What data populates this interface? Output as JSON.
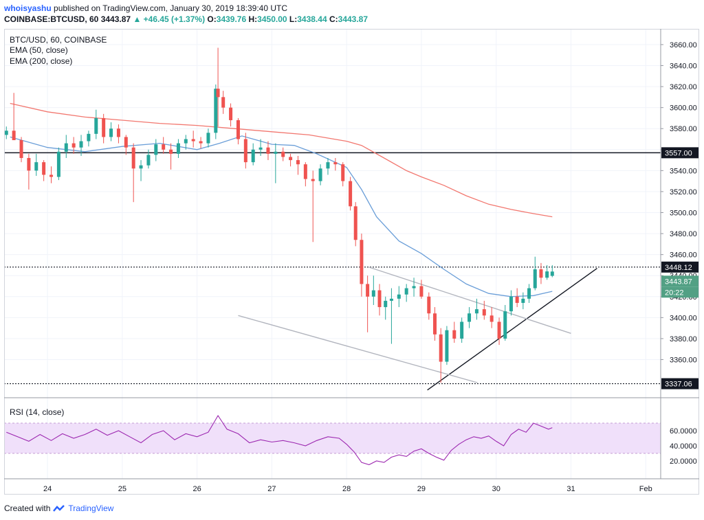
{
  "header": {
    "author": "whoisyashu",
    "published": "published on TradingView.com, January 30, 2019 18:39:40 UTC",
    "symbol": "COINBASE:BTCUSD, 60",
    "last": "3443.87",
    "arrow": "▲",
    "change": "+46.45 (+1.37%)",
    "o_label": "O:",
    "o_value": "3439.76",
    "h_label": "H:",
    "h_value": "3450.00",
    "l_label": "L:",
    "l_value": "3438.44",
    "c_label": "C:",
    "c_value": "3443.87"
  },
  "legend": {
    "line1": "BTC/USD, 60, COINBASE",
    "line2": "EMA (50, close)",
    "line3": "EMA (200, close)",
    "rsi": "RSI (14, close)"
  },
  "price_labels": {
    "resistance": "3557.00",
    "dotted_high": "3448.12",
    "last_price": "3443.87",
    "countdown": "20:22",
    "dotted_low": "3337.06"
  },
  "footer": {
    "prefix": "Created with",
    "brand": "TradingView"
  },
  "colors": {
    "up": "#26a69a",
    "down": "#ef5350",
    "ema50": "#6a9ed8",
    "ema200": "#f2776f",
    "rsi": "#9c27b0",
    "rsi_band": "#f0e0fa",
    "last_label": "#52a084"
  },
  "chart_data": {
    "type": "candlestick",
    "price_axis": {
      "ticks": [
        3360,
        3380,
        3400,
        3420,
        3440,
        3460,
        3480,
        3500,
        3520,
        3540,
        3560,
        3580,
        3600,
        3620,
        3640,
        3660
      ],
      "range": [
        3325,
        3675
      ]
    },
    "time_axis": {
      "labels": [
        "24",
        "25",
        "26",
        "27",
        "28",
        "29",
        "30",
        "31",
        "Feb"
      ]
    },
    "horizontal_levels": [
      {
        "value": 3557.0,
        "style": "solid"
      },
      {
        "value": 3448.12,
        "style": "dotted"
      },
      {
        "value": 3337.06,
        "style": "dotted"
      }
    ],
    "trendlines": [
      {
        "from": [
          29.08,
          3331
        ],
        "to": [
          31.35,
          3447
        ],
        "color": "#131722"
      },
      {
        "from": [
          28.3,
          3448
        ],
        "to": [
          31.0,
          3385
        ],
        "color": "#b2b5be"
      },
      {
        "from": [
          26.55,
          3402
        ],
        "to": [
          29.75,
          3338
        ],
        "color": "#b2b5be"
      }
    ],
    "ema50": [
      [
        23.5,
        3572
      ],
      [
        24.0,
        3562
      ],
      [
        24.5,
        3558
      ],
      [
        25.0,
        3563
      ],
      [
        25.5,
        3566
      ],
      [
        26.0,
        3560
      ],
      [
        26.3,
        3566
      ],
      [
        26.6,
        3573
      ],
      [
        27.0,
        3565
      ],
      [
        27.3,
        3564
      ],
      [
        27.6,
        3556
      ],
      [
        28.0,
        3543
      ],
      [
        28.2,
        3522
      ],
      [
        28.4,
        3496
      ],
      [
        28.7,
        3473
      ],
      [
        29.0,
        3461
      ],
      [
        29.3,
        3446
      ],
      [
        29.6,
        3432
      ],
      [
        29.9,
        3423
      ],
      [
        30.2,
        3420
      ],
      [
        30.5,
        3421
      ],
      [
        30.75,
        3425
      ]
    ],
    "ema200": [
      [
        23.5,
        3604
      ],
      [
        24.0,
        3596
      ],
      [
        24.5,
        3591
      ],
      [
        25.0,
        3588
      ],
      [
        25.5,
        3585
      ],
      [
        26.0,
        3583
      ],
      [
        26.5,
        3580
      ],
      [
        27.0,
        3577
      ],
      [
        27.5,
        3574
      ],
      [
        28.0,
        3568
      ],
      [
        28.2,
        3564
      ],
      [
        28.5,
        3552
      ],
      [
        28.8,
        3540
      ],
      [
        29.0,
        3534
      ],
      [
        29.3,
        3526
      ],
      [
        29.6,
        3516
      ],
      [
        29.9,
        3508
      ],
      [
        30.2,
        3503
      ],
      [
        30.5,
        3499
      ],
      [
        30.75,
        3496
      ]
    ],
    "candles": [
      [
        23.45,
        3574,
        3582,
        3570,
        3578
      ],
      [
        23.55,
        3578,
        3614,
        3570,
        3569
      ],
      [
        23.65,
        3569,
        3572,
        3548,
        3552
      ],
      [
        23.75,
        3552,
        3556,
        3522,
        3540
      ],
      [
        23.85,
        3540,
        3556,
        3535,
        3548
      ],
      [
        23.95,
        3548,
        3550,
        3530,
        3536
      ],
      [
        24.05,
        3536,
        3544,
        3528,
        3534
      ],
      [
        24.15,
        3534,
        3562,
        3531,
        3558
      ],
      [
        24.25,
        3558,
        3574,
        3552,
        3566
      ],
      [
        24.35,
        3566,
        3572,
        3556,
        3562
      ],
      [
        24.45,
        3562,
        3574,
        3554,
        3568
      ],
      [
        24.55,
        3568,
        3578,
        3563,
        3575
      ],
      [
        24.65,
        3575,
        3598,
        3570,
        3590
      ],
      [
        24.75,
        3590,
        3594,
        3566,
        3572
      ],
      [
        24.85,
        3572,
        3586,
        3568,
        3580
      ],
      [
        24.95,
        3580,
        3584,
        3566,
        3572
      ],
      [
        25.05,
        3572,
        3574,
        3555,
        3562
      ],
      [
        25.15,
        3562,
        3566,
        3510,
        3542
      ],
      [
        25.25,
        3542,
        3550,
        3530,
        3545
      ],
      [
        25.35,
        3545,
        3560,
        3542,
        3555
      ],
      [
        25.45,
        3555,
        3570,
        3549,
        3565
      ],
      [
        25.55,
        3565,
        3572,
        3556,
        3560
      ],
      [
        25.65,
        3560,
        3566,
        3541,
        3556
      ],
      [
        25.75,
        3556,
        3570,
        3552,
        3566
      ],
      [
        25.85,
        3566,
        3574,
        3560,
        3570
      ],
      [
        25.95,
        3570,
        3578,
        3562,
        3568
      ],
      [
        26.05,
        3568,
        3572,
        3561,
        3566
      ],
      [
        26.15,
        3566,
        3580,
        3562,
        3576
      ],
      [
        26.25,
        3576,
        3622,
        3570,
        3618
      ],
      [
        26.28,
        3618,
        3657,
        3582,
        3610
      ],
      [
        26.35,
        3610,
        3616,
        3594,
        3600
      ],
      [
        26.45,
        3600,
        3604,
        3582,
        3588
      ],
      [
        26.55,
        3588,
        3590,
        3565,
        3570
      ],
      [
        26.65,
        3570,
        3576,
        3542,
        3548
      ],
      [
        26.75,
        3548,
        3566,
        3545,
        3560
      ],
      [
        26.85,
        3560,
        3570,
        3554,
        3562
      ],
      [
        26.95,
        3562,
        3568,
        3550,
        3556
      ],
      [
        27.05,
        3556,
        3566,
        3528,
        3558
      ],
      [
        27.15,
        3558,
        3562,
        3549,
        3553
      ],
      [
        27.25,
        3553,
        3556,
        3544,
        3550
      ],
      [
        27.35,
        3550,
        3554,
        3536,
        3546
      ],
      [
        27.45,
        3546,
        3548,
        3525,
        3532
      ],
      [
        27.55,
        3532,
        3540,
        3472,
        3530
      ],
      [
        27.65,
        3530,
        3546,
        3526,
        3542
      ],
      [
        27.75,
        3542,
        3552,
        3536,
        3548
      ],
      [
        27.85,
        3548,
        3552,
        3540,
        3546
      ],
      [
        27.95,
        3546,
        3548,
        3525,
        3530
      ],
      [
        28.05,
        3530,
        3534,
        3502,
        3506
      ],
      [
        28.12,
        3506,
        3510,
        3468,
        3474
      ],
      [
        28.2,
        3474,
        3480,
        3420,
        3432
      ],
      [
        28.28,
        3432,
        3440,
        3386,
        3420
      ],
      [
        28.36,
        3420,
        3440,
        3412,
        3426
      ],
      [
        28.44,
        3426,
        3432,
        3402,
        3410
      ],
      [
        28.52,
        3410,
        3420,
        3398,
        3416
      ],
      [
        28.6,
        3416,
        3428,
        3375,
        3418
      ],
      [
        28.7,
        3418,
        3430,
        3410,
        3422
      ],
      [
        28.8,
        3422,
        3432,
        3415,
        3428
      ],
      [
        28.9,
        3428,
        3438,
        3420,
        3430
      ],
      [
        29.0,
        3430,
        3436,
        3418,
        3420
      ],
      [
        29.1,
        3420,
        3424,
        3398,
        3404
      ],
      [
        29.18,
        3404,
        3410,
        3378,
        3384
      ],
      [
        29.26,
        3384,
        3390,
        3338,
        3358
      ],
      [
        29.34,
        3358,
        3392,
        3355,
        3388
      ],
      [
        29.44,
        3388,
        3396,
        3376,
        3380
      ],
      [
        29.54,
        3380,
        3400,
        3376,
        3396
      ],
      [
        29.64,
        3396,
        3410,
        3390,
        3404
      ],
      [
        29.74,
        3404,
        3418,
        3398,
        3408
      ],
      [
        29.84,
        3408,
        3416,
        3398,
        3402
      ],
      [
        29.94,
        3402,
        3410,
        3390,
        3396
      ],
      [
        30.04,
        3396,
        3400,
        3374,
        3380
      ],
      [
        30.12,
        3380,
        3412,
        3378,
        3406
      ],
      [
        30.2,
        3406,
        3426,
        3402,
        3420
      ],
      [
        30.28,
        3420,
        3428,
        3410,
        3414
      ],
      [
        30.36,
        3414,
        3424,
        3408,
        3418
      ],
      [
        30.44,
        3418,
        3432,
        3414,
        3428
      ],
      [
        30.52,
        3428,
        3458,
        3426,
        3446
      ],
      [
        30.6,
        3446,
        3452,
        3432,
        3438
      ],
      [
        30.68,
        3438,
        3450,
        3436,
        3444
      ],
      [
        30.75,
        3439.76,
        3450.0,
        3438.44,
        3443.87
      ]
    ],
    "rsi": {
      "axis_ticks": [
        20,
        40,
        60
      ],
      "band": [
        30,
        70
      ],
      "values": [
        [
          23.45,
          58
        ],
        [
          23.6,
          52
        ],
        [
          23.75,
          46
        ],
        [
          23.9,
          55
        ],
        [
          24.05,
          47
        ],
        [
          24.2,
          56
        ],
        [
          24.35,
          50
        ],
        [
          24.5,
          55
        ],
        [
          24.65,
          62
        ],
        [
          24.8,
          54
        ],
        [
          24.95,
          60
        ],
        [
          25.1,
          52
        ],
        [
          25.25,
          44
        ],
        [
          25.4,
          55
        ],
        [
          25.55,
          60
        ],
        [
          25.7,
          48
        ],
        [
          25.85,
          56
        ],
        [
          26.0,
          52
        ],
        [
          26.15,
          58
        ],
        [
          26.28,
          80
        ],
        [
          26.4,
          62
        ],
        [
          26.55,
          56
        ],
        [
          26.7,
          44
        ],
        [
          26.85,
          48
        ],
        [
          27.0,
          45
        ],
        [
          27.15,
          47
        ],
        [
          27.3,
          44
        ],
        [
          27.45,
          40
        ],
        [
          27.6,
          47
        ],
        [
          27.75,
          52
        ],
        [
          27.9,
          50
        ],
        [
          28.0,
          42
        ],
        [
          28.1,
          32
        ],
        [
          28.2,
          18
        ],
        [
          28.3,
          15
        ],
        [
          28.4,
          20
        ],
        [
          28.5,
          18
        ],
        [
          28.6,
          25
        ],
        [
          28.7,
          28
        ],
        [
          28.8,
          26
        ],
        [
          28.9,
          33
        ],
        [
          29.0,
          36
        ],
        [
          29.1,
          30
        ],
        [
          29.2,
          25
        ],
        [
          29.3,
          21
        ],
        [
          29.4,
          34
        ],
        [
          29.5,
          42
        ],
        [
          29.6,
          48
        ],
        [
          29.7,
          52
        ],
        [
          29.8,
          50
        ],
        [
          29.9,
          53
        ],
        [
          30.0,
          46
        ],
        [
          30.1,
          40
        ],
        [
          30.2,
          55
        ],
        [
          30.3,
          62
        ],
        [
          30.4,
          58
        ],
        [
          30.5,
          70
        ],
        [
          30.6,
          66
        ],
        [
          30.7,
          62
        ],
        [
          30.75,
          64
        ]
      ]
    }
  }
}
